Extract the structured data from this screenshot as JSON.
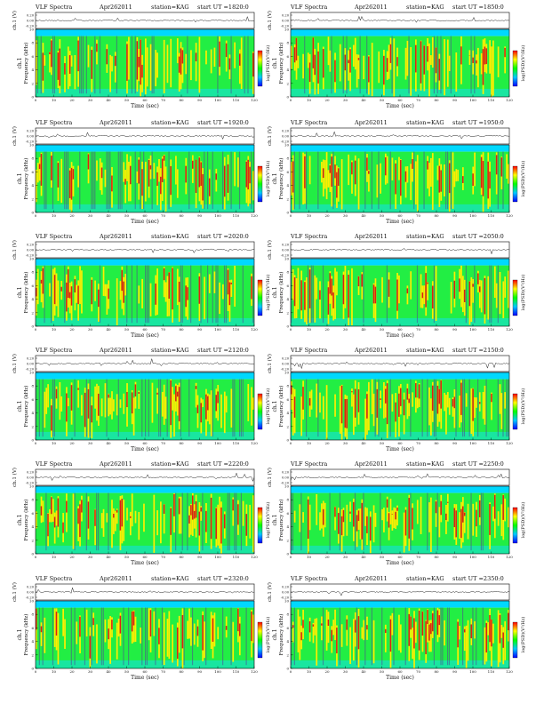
{
  "panel_header": {
    "title": "VLF Spectra",
    "date": "Apr262011",
    "station": "station=KAG",
    "start_prefix": "start  UT  ="
  },
  "waveform_axis": {
    "label": "ch.1 (V)",
    "ticks": [
      "0.20",
      "0.00",
      "-0.20"
    ]
  },
  "spectrogram_axis": {
    "label_top": "ch.1",
    "label": "Frequency  (kHz)",
    "yticks": [
      "0",
      "2",
      "4",
      "6",
      "8",
      "10"
    ],
    "ylim": [
      0,
      10
    ]
  },
  "time_axis": {
    "label": "Time  (sec)",
    "ticks": [
      "0",
      "10",
      "20",
      "30",
      "40",
      "50",
      "60",
      "70",
      "80",
      "90",
      "100",
      "110",
      "120"
    ],
    "xlim": [
      0,
      120
    ]
  },
  "colorbar": {
    "label": "log(PSD)(V²/Hz)",
    "colors": [
      "#ff0000",
      "#ffff00",
      "#00ff00",
      "#00c8ff",
      "#0000ff"
    ]
  },
  "chart_data": [
    {
      "type": "heatmap",
      "start_time": "1820:0",
      "xlim": [
        0,
        120
      ],
      "ylim": [
        0,
        10
      ]
    },
    {
      "type": "heatmap",
      "start_time": "1850:0",
      "xlim": [
        0,
        120
      ],
      "ylim": [
        0,
        10
      ]
    },
    {
      "type": "heatmap",
      "start_time": "1920:0",
      "xlim": [
        0,
        120
      ],
      "ylim": [
        0,
        10
      ]
    },
    {
      "type": "heatmap",
      "start_time": "1950:0",
      "xlim": [
        0,
        120
      ],
      "ylim": [
        0,
        10
      ]
    },
    {
      "type": "heatmap",
      "start_time": "2020:0",
      "xlim": [
        0,
        120
      ],
      "ylim": [
        0,
        10
      ]
    },
    {
      "type": "heatmap",
      "start_time": "2050:0",
      "xlim": [
        0,
        120
      ],
      "ylim": [
        0,
        10
      ]
    },
    {
      "type": "heatmap",
      "start_time": "2120:0",
      "xlim": [
        0,
        120
      ],
      "ylim": [
        0,
        10
      ]
    },
    {
      "type": "heatmap",
      "start_time": "2150:0",
      "xlim": [
        0,
        120
      ],
      "ylim": [
        0,
        10
      ]
    },
    {
      "type": "heatmap",
      "start_time": "2220:0",
      "xlim": [
        0,
        120
      ],
      "ylim": [
        0,
        10
      ]
    },
    {
      "type": "heatmap",
      "start_time": "2250:0",
      "xlim": [
        0,
        120
      ],
      "ylim": [
        0,
        10
      ]
    },
    {
      "type": "heatmap",
      "start_time": "2320:0",
      "xlim": [
        0,
        120
      ],
      "ylim": [
        0,
        10
      ]
    },
    {
      "type": "heatmap",
      "start_time": "2350:0",
      "xlim": [
        0,
        120
      ],
      "ylim": [
        0,
        10
      ]
    }
  ]
}
